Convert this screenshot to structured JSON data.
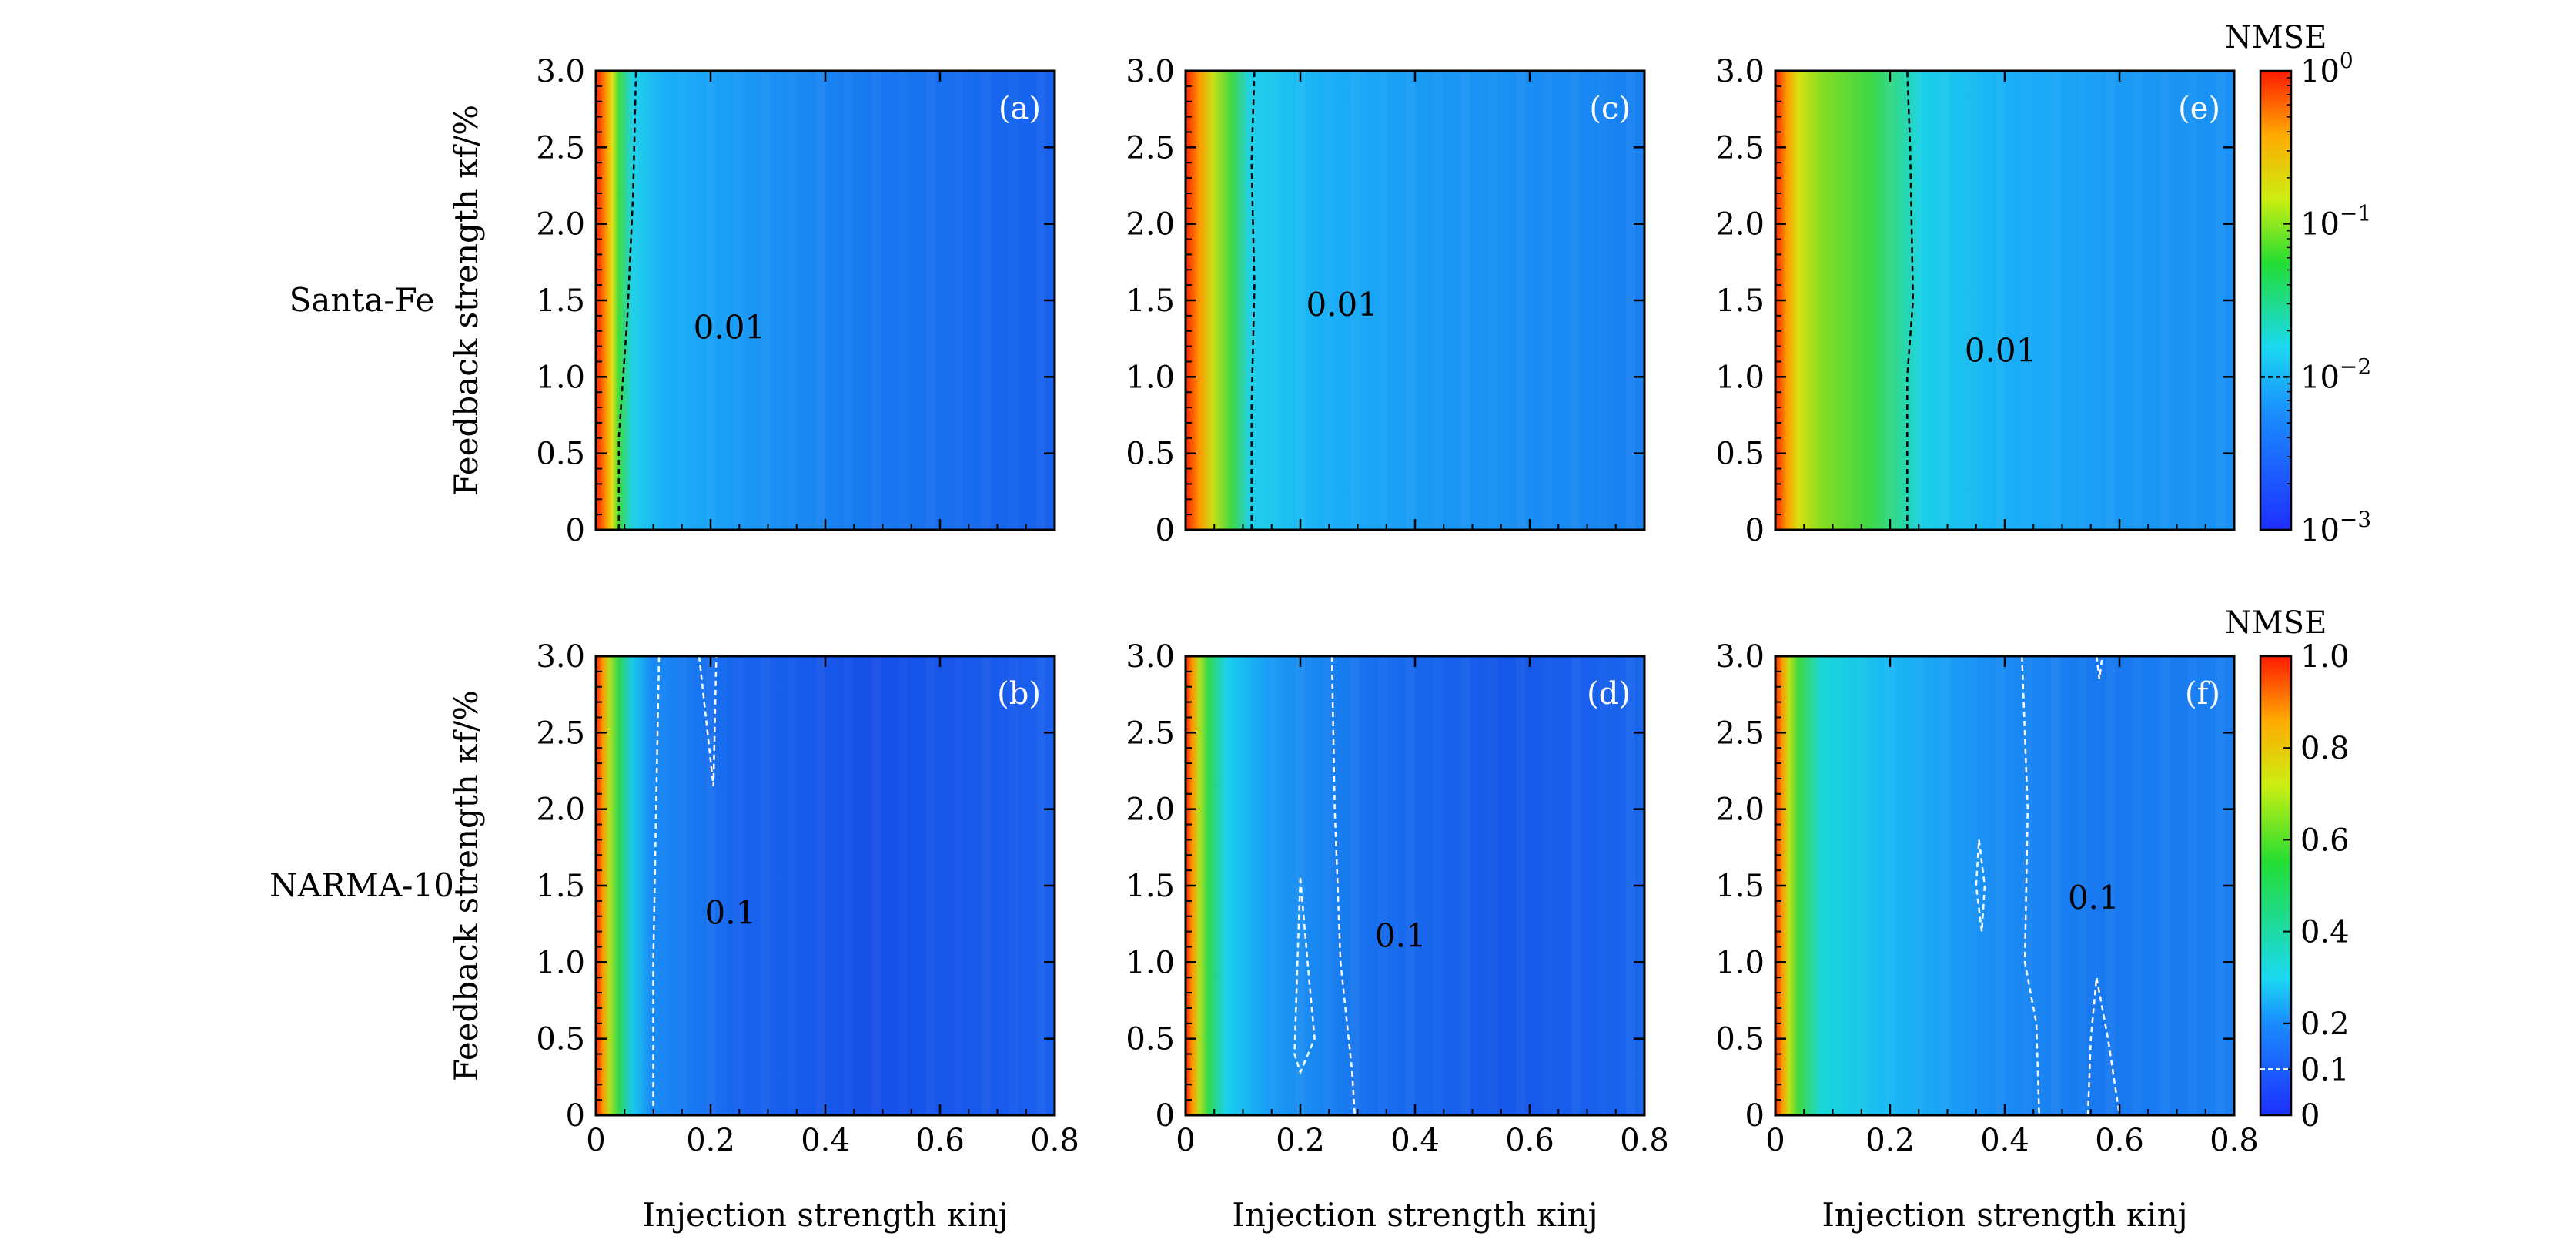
{
  "colors": {
    "frame": "#000000",
    "contour_top": "#000000",
    "contour_bottom": "#ffffff",
    "highlight_tick": "#ff0000"
  },
  "rows": [
    {
      "label": "Santa-Fe",
      "ylabel": "Feedback strength κf/%"
    },
    {
      "label": "NARMA-10",
      "ylabel": "Feedback strength κf/%"
    }
  ],
  "xlabel": "Injection strength κinj",
  "chart_data": [
    {
      "type": "heatmap",
      "panel": "(a)",
      "task": "Santa-Fe",
      "xlim": [
        0,
        0.8
      ],
      "ylim": [
        0,
        3.0
      ],
      "x_ticks": [
        "0",
        "0.2",
        "0.4",
        "0.6",
        "0.8"
      ],
      "y_ticks": [
        "0",
        "0.5",
        "1.0",
        "1.5",
        "2.0",
        "2.5",
        "3.0"
      ],
      "contour_label": "0.01",
      "contour": [
        [
          0.04,
          0
        ],
        [
          0.04,
          0.6
        ],
        [
          0.055,
          1.4
        ],
        [
          0.065,
          2.2
        ],
        [
          0.07,
          3.0
        ]
      ]
    },
    {
      "type": "heatmap",
      "panel": "(b)",
      "task": "NARMA-10",
      "xlim": [
        0,
        0.8
      ],
      "ylim": [
        0,
        3.0
      ],
      "x_ticks": [
        "0",
        "0.2",
        "0.4",
        "0.6",
        "0.8"
      ],
      "y_ticks": [
        "0",
        "0.5",
        "1.0",
        "1.5",
        "2.0",
        "2.5",
        "3.0"
      ],
      "contour_label": "0.1",
      "contour": [
        [
          0.1,
          0
        ],
        [
          0.1,
          1.0
        ],
        [
          0.105,
          2.0
        ],
        [
          0.11,
          3.0
        ]
      ],
      "contour2": [
        [
          0.18,
          3.0
        ],
        [
          0.205,
          2.15
        ],
        [
          0.21,
          3.0
        ]
      ]
    },
    {
      "type": "heatmap",
      "panel": "(c)",
      "task": "Santa-Fe",
      "xlim": [
        0,
        0.8
      ],
      "ylim": [
        0,
        3.0
      ],
      "x_ticks": [
        "0",
        "0.2",
        "0.4",
        "0.6",
        "0.8"
      ],
      "y_ticks": [
        "0",
        "0.5",
        "1.0",
        "1.5",
        "2.0",
        "2.5",
        "3.0"
      ],
      "contour_label": "0.01",
      "contour": [
        [
          0.115,
          0
        ],
        [
          0.115,
          0.8
        ],
        [
          0.12,
          1.6
        ],
        [
          0.115,
          2.4
        ],
        [
          0.12,
          3.0
        ]
      ]
    },
    {
      "type": "heatmap",
      "panel": "(d)",
      "task": "NARMA-10",
      "xlim": [
        0,
        0.8
      ],
      "ylim": [
        0,
        3.0
      ],
      "x_ticks": [
        "0",
        "0.2",
        "0.4",
        "0.6",
        "0.8"
      ],
      "y_ticks": [
        "0",
        "0.5",
        "1.0",
        "1.5",
        "2.0",
        "2.5",
        "3.0"
      ],
      "contour_label": "0.1",
      "contour": [
        [
          0.255,
          3.0
        ],
        [
          0.26,
          2.0
        ],
        [
          0.27,
          1.0
        ],
        [
          0.29,
          0.3
        ],
        [
          0.295,
          0
        ]
      ],
      "contour2": [
        [
          0.2,
          1.55
        ],
        [
          0.215,
          0.9
        ],
        [
          0.225,
          0.5
        ],
        [
          0.2,
          0.28
        ],
        [
          0.19,
          0.4
        ],
        [
          0.195,
          1.0
        ],
        [
          0.2,
          1.55
        ]
      ]
    },
    {
      "type": "heatmap",
      "panel": "(e)",
      "task": "Santa-Fe",
      "xlim": [
        0,
        0.8
      ],
      "ylim": [
        0,
        3.0
      ],
      "x_ticks": [
        "0",
        "0.2",
        "0.4",
        "0.6",
        "0.8"
      ],
      "y_ticks": [
        "0",
        "0.5",
        "1.0",
        "1.5",
        "2.0",
        "2.5",
        "3.0"
      ],
      "contour_label": "0.01",
      "contour": [
        [
          0.23,
          0
        ],
        [
          0.23,
          1.0
        ],
        [
          0.24,
          1.5
        ],
        [
          0.235,
          2.5
        ],
        [
          0.23,
          3.0
        ]
      ]
    },
    {
      "type": "heatmap",
      "panel": "(f)",
      "task": "NARMA-10",
      "xlim": [
        0,
        0.8
      ],
      "ylim": [
        0,
        3.0
      ],
      "x_ticks": [
        "0",
        "0.2",
        "0.4",
        "0.6",
        "0.8"
      ],
      "y_ticks": [
        "0",
        "0.5",
        "1.0",
        "1.5",
        "2.0",
        "2.5",
        "3.0"
      ],
      "contour_label": "0.1",
      "contour": [
        [
          0.43,
          3.0
        ],
        [
          0.44,
          2.0
        ],
        [
          0.435,
          1.0
        ],
        [
          0.455,
          0.6
        ],
        [
          0.46,
          0
        ]
      ],
      "contour2": [
        [
          0.355,
          1.8
        ],
        [
          0.365,
          1.5
        ],
        [
          0.36,
          1.2
        ],
        [
          0.35,
          1.5
        ],
        [
          0.355,
          1.8
        ]
      ],
      "contour3": [
        [
          0.545,
          0
        ],
        [
          0.55,
          0.5
        ],
        [
          0.56,
          0.9
        ],
        [
          0.58,
          0.5
        ],
        [
          0.6,
          0
        ]
      ],
      "contour4": [
        [
          0.56,
          3.0
        ],
        [
          0.565,
          2.85
        ],
        [
          0.57,
          3.0
        ]
      ]
    }
  ],
  "colorbars": [
    {
      "title": "NMSE",
      "scale": "log",
      "ticks": [
        "100",
        "10−1",
        "10−2",
        "10−3"
      ],
      "values": [
        1,
        0.1,
        0.01,
        0.001
      ],
      "marker": 0.01
    },
    {
      "title": "NMSE",
      "scale": "linear",
      "ticks": [
        "1.0",
        "0.8",
        "0.6",
        "0.4",
        "0.2",
        "0.1",
        "0"
      ],
      "values": [
        1.0,
        0.8,
        0.6,
        0.4,
        0.2,
        0.1,
        0
      ],
      "marker": 0.1,
      "marker_label": "0.1"
    }
  ]
}
